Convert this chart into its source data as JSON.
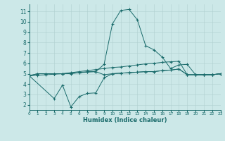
{
  "xlabel": "Humidex (Indice chaleur)",
  "bg_color": "#cce8e8",
  "line_color": "#1a6b6b",
  "xlim": [
    0,
    23
  ],
  "ylim": [
    1.5,
    11.7
  ],
  "xticks": [
    0,
    1,
    2,
    3,
    4,
    5,
    6,
    7,
    8,
    9,
    10,
    11,
    12,
    13,
    14,
    15,
    16,
    17,
    18,
    19,
    20,
    21,
    22,
    23
  ],
  "yticks": [
    2,
    3,
    4,
    5,
    6,
    7,
    8,
    9,
    10,
    11
  ],
  "line1_x": [
    0,
    1,
    2,
    3,
    4,
    5,
    6,
    7,
    8,
    9,
    10,
    11,
    12,
    13,
    14,
    15,
    16,
    17,
    18,
    19,
    20,
    21,
    22,
    23
  ],
  "line1_y": [
    4.8,
    5.0,
    5.0,
    5.0,
    5.0,
    5.0,
    5.1,
    5.2,
    5.2,
    5.9,
    9.8,
    11.1,
    11.2,
    10.2,
    7.7,
    7.3,
    6.6,
    5.5,
    5.85,
    5.9,
    4.9,
    4.9,
    4.9,
    5.0
  ],
  "line2_x": [
    0,
    1,
    2,
    3,
    4,
    5,
    6,
    7,
    8,
    9,
    10,
    11,
    12,
    13,
    14,
    15,
    16,
    17,
    18,
    19,
    20,
    21,
    22,
    23
  ],
  "line2_y": [
    4.8,
    5.0,
    5.0,
    5.0,
    5.0,
    5.05,
    5.1,
    5.15,
    5.2,
    4.9,
    5.0,
    5.05,
    5.1,
    5.15,
    5.2,
    5.2,
    5.3,
    5.35,
    5.45,
    4.9,
    4.9,
    4.9,
    4.9,
    5.0
  ],
  "line3_x": [
    0,
    3,
    4,
    5,
    6,
    7,
    8,
    9,
    10,
    11,
    12,
    13,
    14,
    15,
    16,
    17,
    18,
    19,
    20,
    21,
    22,
    23
  ],
  "line3_y": [
    4.8,
    2.6,
    3.9,
    1.8,
    2.8,
    3.1,
    3.15,
    4.6,
    5.0,
    5.05,
    5.1,
    5.15,
    5.2,
    5.2,
    5.3,
    5.35,
    5.45,
    4.9,
    4.9,
    4.9,
    4.9,
    5.0
  ],
  "line4_x": [
    0,
    1,
    2,
    3,
    4,
    5,
    6,
    7,
    8,
    9,
    10,
    11,
    12,
    13,
    14,
    15,
    16,
    17,
    18,
    19,
    20,
    21,
    22,
    23
  ],
  "line4_y": [
    4.8,
    4.85,
    4.9,
    4.95,
    5.0,
    5.1,
    5.2,
    5.3,
    5.4,
    5.5,
    5.6,
    5.65,
    5.75,
    5.85,
    5.95,
    6.0,
    6.1,
    6.15,
    6.2,
    4.9,
    4.9,
    4.9,
    4.9,
    5.0
  ]
}
